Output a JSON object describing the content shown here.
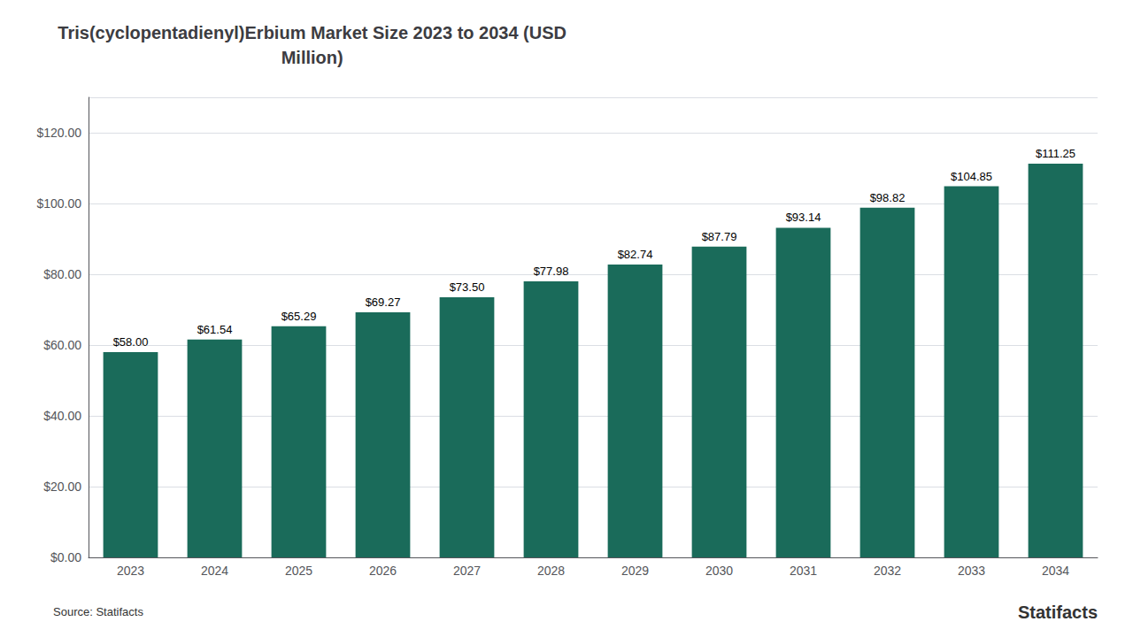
{
  "chart_data": {
    "type": "bar",
    "title": "Tris(cyclopentadienyl)Erbium Market Size 2023 to 2034 (USD\nMillion)",
    "categories": [
      "2023",
      "2024",
      "2025",
      "2026",
      "2027",
      "2028",
      "2029",
      "2030",
      "2031",
      "2032",
      "2033",
      "2034"
    ],
    "values": [
      58.0,
      61.54,
      65.29,
      69.27,
      73.5,
      77.98,
      82.74,
      87.79,
      93.14,
      98.82,
      104.85,
      111.25
    ],
    "value_labels": [
      "$58.00",
      "$61.54",
      "$65.29",
      "$69.27",
      "$73.50",
      "$77.98",
      "$82.74",
      "$87.79",
      "$93.14",
      "$98.82",
      "$104.85",
      "$111.25"
    ],
    "data_labels": true,
    "color": "#1a6b5a",
    "ylim": [
      0,
      130
    ],
    "yticks": [
      {
        "value": 0,
        "label": "$0.00"
      },
      {
        "value": 20,
        "label": "$20.00"
      },
      {
        "value": 40,
        "label": "$40.00"
      },
      {
        "value": 60,
        "label": "$60.00"
      },
      {
        "value": 80,
        "label": "$80.00"
      },
      {
        "value": 100,
        "label": "$100.00"
      },
      {
        "value": 120,
        "label": "$120.00"
      }
    ],
    "grid": true,
    "annotations": [
      "Source: Statifacts",
      "Statifacts"
    ]
  }
}
